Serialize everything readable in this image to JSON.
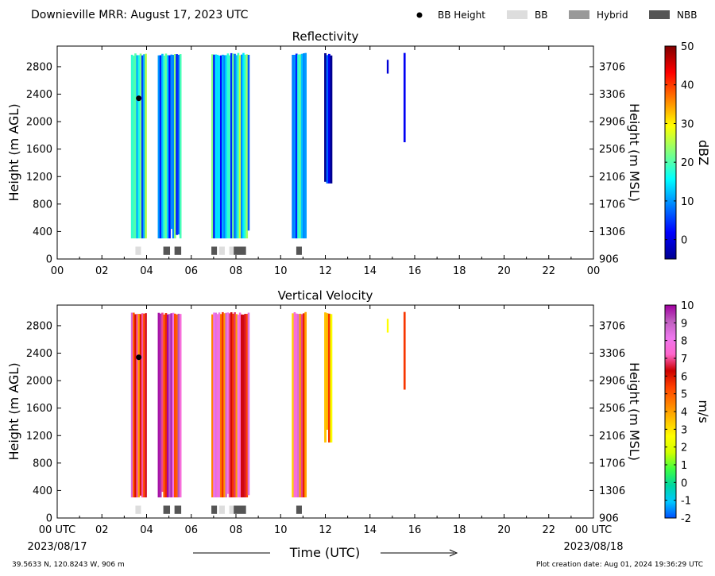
{
  "header": {
    "title": "Downieville MRR:  August 17, 2023 UTC",
    "legend": [
      {
        "label": "BB Height",
        "kind": "dot",
        "color": "#000000"
      },
      {
        "label": "BB",
        "kind": "box",
        "color": "#dddddd"
      },
      {
        "label": "Hybrid",
        "kind": "box",
        "color": "#999999"
      },
      {
        "label": "NBB",
        "kind": "box",
        "color": "#555555"
      }
    ]
  },
  "footer": {
    "location": "39.5633 N, 120.8243 W, 906 m",
    "creation": "Plot creation date: Aug 01, 2024 19:36:29 UTC",
    "xlabel": "Time (UTC)",
    "start_date": "2023/08/17",
    "end_date": "2023/08/18"
  },
  "chart_data": [
    {
      "type": "heatmap",
      "title": "Reflectivity",
      "ylabel": "Height (m AGL)",
      "y2label": "Height (m MSL)",
      "xlim": [
        0,
        24
      ],
      "ylim": [
        0,
        3100
      ],
      "x_ticks": [
        "00",
        "02",
        "04",
        "06",
        "08",
        "10",
        "12",
        "14",
        "16",
        "18",
        "20",
        "22",
        "00"
      ],
      "y_ticks": [
        0,
        400,
        800,
        1200,
        1600,
        2000,
        2400,
        2800
      ],
      "y2_ticks": [
        906,
        1306,
        1706,
        2106,
        2506,
        2906,
        3306,
        3706
      ],
      "colorbar": {
        "label": "dBZ",
        "range": [
          -5,
          50
        ],
        "ticks": [
          0,
          10,
          20,
          30,
          40,
          50
        ],
        "colors": [
          "#00008f",
          "#0000ff",
          "#0080ff",
          "#00ffff",
          "#80ff80",
          "#ffff00",
          "#ff8000",
          "#ff0000",
          "#800000"
        ]
      },
      "echo_periods": [
        {
          "start": 3.3,
          "end": 4.0,
          "top": 3000,
          "bottom": 300,
          "level": 15
        },
        {
          "start": 4.5,
          "end": 5.55,
          "top": 3000,
          "bottom": 300,
          "level": 12
        },
        {
          "start": 6.9,
          "end": 8.6,
          "top": 3000,
          "bottom": 300,
          "level": 14
        },
        {
          "start": 10.5,
          "end": 11.15,
          "top": 3000,
          "bottom": 300,
          "level": 13
        },
        {
          "start": 11.95,
          "end": 12.3,
          "top": 3000,
          "bottom": 1100,
          "level": 2
        },
        {
          "start": 14.75,
          "end": 14.82,
          "top": 2900,
          "bottom": 2700,
          "level": 3
        },
        {
          "start": 15.5,
          "end": 15.58,
          "top": 3000,
          "bottom": 1700,
          "level": 8
        }
      ],
      "bb_height": [
        {
          "time": 3.65,
          "height": 2340
        }
      ],
      "bb_type_bars": [
        {
          "start": 3.5,
          "end": 3.75,
          "type": "BB"
        },
        {
          "start": 4.75,
          "end": 5.05,
          "type": "NBB"
        },
        {
          "start": 5.25,
          "end": 5.55,
          "type": "NBB"
        },
        {
          "start": 6.9,
          "end": 7.15,
          "type": "NBB"
        },
        {
          "start": 7.25,
          "end": 7.5,
          "type": "BB"
        },
        {
          "start": 7.7,
          "end": 7.9,
          "type": "BB"
        },
        {
          "start": 7.9,
          "end": 8.45,
          "type": "NBB"
        },
        {
          "start": 10.7,
          "end": 10.95,
          "type": "NBB"
        }
      ]
    },
    {
      "type": "heatmap",
      "title": "Vertical Velocity",
      "ylabel": "Height (m AGL)",
      "y2label": "Height (m MSL)",
      "xlim": [
        0,
        24
      ],
      "ylim": [
        0,
        3100
      ],
      "x_ticks": [
        "00 UTC",
        "02",
        "04",
        "06",
        "08",
        "10",
        "12",
        "14",
        "16",
        "18",
        "20",
        "22",
        "00 UTC"
      ],
      "y_ticks": [
        0,
        400,
        800,
        1200,
        1600,
        2000,
        2400,
        2800
      ],
      "y2_ticks": [
        906,
        1306,
        1706,
        2106,
        2506,
        2906,
        3306,
        3706
      ],
      "colorbar": {
        "label": "m/s",
        "range": [
          -2,
          10
        ],
        "ticks": [
          -2,
          -1,
          0,
          1,
          2,
          3,
          4,
          5,
          6,
          7,
          8,
          9,
          10
        ],
        "colors": [
          "#0050ff",
          "#00c8ff",
          "#00d7a0",
          "#40ff40",
          "#d0ff00",
          "#ffff00",
          "#ffc000",
          "#ff8000",
          "#ff4000",
          "#cc0000",
          "#ff66cc",
          "#ee77ee",
          "#c060c0",
          "#a000a0"
        ]
      },
      "echo_periods": [
        {
          "start": 3.3,
          "end": 4.0,
          "top": 3000,
          "bottom": 300,
          "level": 6
        },
        {
          "start": 4.5,
          "end": 5.55,
          "top": 3000,
          "bottom": 300,
          "level": 7.5
        },
        {
          "start": 6.9,
          "end": 8.6,
          "top": 3000,
          "bottom": 300,
          "level": 6.5
        },
        {
          "start": 10.5,
          "end": 11.15,
          "top": 3000,
          "bottom": 300,
          "level": 6
        },
        {
          "start": 11.95,
          "end": 12.3,
          "top": 3000,
          "bottom": 1100,
          "level": 4
        },
        {
          "start": 14.75,
          "end": 14.82,
          "top": 2900,
          "bottom": 2700,
          "level": 5
        },
        {
          "start": 15.5,
          "end": 15.58,
          "top": 3000,
          "bottom": 1700,
          "level": 6
        }
      ],
      "bb_height": [
        {
          "time": 3.65,
          "height": 2340
        }
      ],
      "bb_type_bars": [
        {
          "start": 3.5,
          "end": 3.75,
          "type": "BB"
        },
        {
          "start": 4.75,
          "end": 5.05,
          "type": "NBB"
        },
        {
          "start": 5.25,
          "end": 5.55,
          "type": "NBB"
        },
        {
          "start": 6.9,
          "end": 7.15,
          "type": "NBB"
        },
        {
          "start": 7.25,
          "end": 7.5,
          "type": "BB"
        },
        {
          "start": 7.7,
          "end": 7.9,
          "type": "BB"
        },
        {
          "start": 7.9,
          "end": 8.45,
          "type": "NBB"
        },
        {
          "start": 10.7,
          "end": 10.95,
          "type": "NBB"
        }
      ]
    }
  ]
}
